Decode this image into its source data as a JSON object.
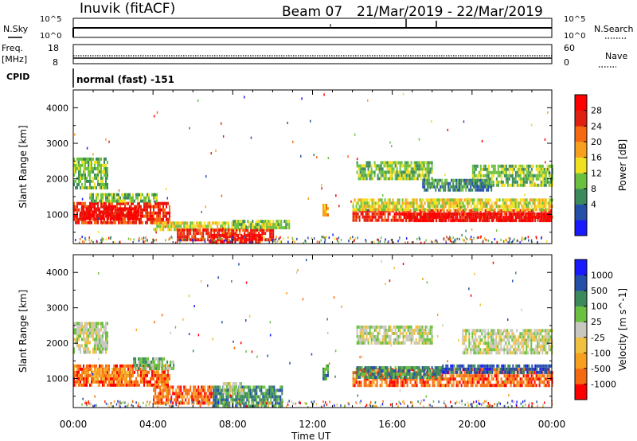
{
  "header": {
    "radar_title": "Inuvik (fitACF)",
    "beam_label": "Beam 07",
    "date_range": "21/Mar/2019 - 22/Mar/2019"
  },
  "strips": {
    "nsky_label": "N.Sky",
    "nsky_ticks": [
      "10^5",
      "10^0"
    ],
    "nsearch_label": "N.Search",
    "nsearch_ticks": [
      "10^5",
      "10^0"
    ],
    "freq_label": "Freq.",
    "freq_unit": "[MHz]",
    "freq_ticks": [
      "18",
      "8"
    ],
    "nave_label": "Nave",
    "nave_ticks": [
      "60",
      "0"
    ],
    "cpid_label": "CPID",
    "cpid_value": "normal (fast) -151"
  },
  "chart_data": [
    {
      "type": "heatmap",
      "name": "power",
      "ylabel": "Slant Range [km]",
      "xlabel": "Time UT",
      "x_ticks": [
        "00:00",
        "04:00",
        "08:00",
        "12:00",
        "16:00",
        "20:00",
        "00:00"
      ],
      "y_ticks": [
        1000,
        2000,
        3000,
        4000
      ],
      "ylim": [
        180,
        4500
      ],
      "xlim_hours": [
        0,
        24
      ],
      "colorbar": {
        "label": "Power [dB]",
        "ticks": [
          "28",
          "24",
          "20",
          "16",
          "12",
          "8",
          "4"
        ],
        "colors": [
          "#1a1aff",
          "#2550a8",
          "#3c8a5c",
          "#6cc040",
          "#f0e020",
          "#f7a020",
          "#f56a10",
          "#e02010",
          "#ff0000"
        ]
      },
      "regions": [
        {
          "t0": 0.0,
          "t1": 1.7,
          "r0": 1750,
          "r1": 2600,
          "level": 3
        },
        {
          "t0": 0.0,
          "t1": 4.8,
          "r0": 800,
          "r1": 1350,
          "level": 7
        },
        {
          "t0": 0.3,
          "t1": 3.3,
          "r0": 850,
          "r1": 1200,
          "level": 8
        },
        {
          "t0": 0.8,
          "t1": 4.2,
          "r0": 1350,
          "r1": 1600,
          "level": 3
        },
        {
          "t0": 4.0,
          "t1": 10.0,
          "r0": 600,
          "r1": 800,
          "level": 4
        },
        {
          "t0": 5.2,
          "t1": 10.0,
          "r0": 300,
          "r1": 600,
          "level": 7
        },
        {
          "t0": 6.8,
          "t1": 9.5,
          "r0": 250,
          "r1": 450,
          "level": 8
        },
        {
          "t0": 8.0,
          "t1": 10.8,
          "r0": 650,
          "r1": 850,
          "level": 3
        },
        {
          "t0": 14.0,
          "t1": 24.0,
          "r0": 800,
          "r1": 1150,
          "level": 7
        },
        {
          "t0": 16.5,
          "t1": 24.0,
          "r0": 850,
          "r1": 1050,
          "level": 8
        },
        {
          "t0": 14.0,
          "t1": 24.0,
          "r0": 1150,
          "r1": 1450,
          "level": 4
        },
        {
          "t0": 14.2,
          "t1": 18.0,
          "r0": 2000,
          "r1": 2500,
          "level": 3
        },
        {
          "t0": 20.0,
          "t1": 24.0,
          "r0": 1800,
          "r1": 2400,
          "level": 3
        },
        {
          "t0": 17.5,
          "t1": 21.0,
          "r0": 1700,
          "r1": 2000,
          "level": 2
        },
        {
          "t0": 12.5,
          "t1": 12.8,
          "r0": 1000,
          "r1": 1300,
          "level": 5
        }
      ]
    },
    {
      "type": "heatmap",
      "name": "velocity",
      "ylabel": "Slant Range [km]",
      "xlabel": "Time UT",
      "x_ticks": [
        "00:00",
        "04:00",
        "08:00",
        "12:00",
        "16:00",
        "20:00",
        "00:00"
      ],
      "y_ticks": [
        1000,
        2000,
        3000,
        4000
      ],
      "ylim": [
        180,
        4500
      ],
      "xlim_hours": [
        0,
        24
      ],
      "colorbar": {
        "label": "Velocity [m s^-1]",
        "ticks": [
          "1000",
          "500",
          "100",
          "25",
          "-25",
          "-100",
          "-500",
          "-1000"
        ],
        "colors": [
          "#ff0000",
          "#f56a10",
          "#f7a020",
          "#f0c040",
          "#c8c8c0",
          "#6cc040",
          "#3c8a5c",
          "#2550a8",
          "#1a1aff"
        ]
      },
      "regions": [
        {
          "t0": 0.0,
          "t1": 1.7,
          "r0": 1750,
          "r1": 2600,
          "level": 4
        },
        {
          "t0": 0.0,
          "t1": 4.8,
          "r0": 800,
          "r1": 1400,
          "level": 1
        },
        {
          "t0": 0.4,
          "t1": 3.0,
          "r0": 1000,
          "r1": 1300,
          "level": 2
        },
        {
          "t0": 3.0,
          "t1": 5.0,
          "r0": 1300,
          "r1": 1600,
          "level": 5
        },
        {
          "t0": 4.0,
          "t1": 7.0,
          "r0": 300,
          "r1": 800,
          "level": 1
        },
        {
          "t0": 7.0,
          "t1": 10.5,
          "r0": 250,
          "r1": 800,
          "level": 6
        },
        {
          "t0": 7.5,
          "t1": 8.5,
          "r0": 600,
          "r1": 900,
          "level": 4
        },
        {
          "t0": 14.0,
          "t1": 24.0,
          "r0": 800,
          "r1": 1300,
          "level": 1
        },
        {
          "t0": 14.2,
          "t1": 18.5,
          "r0": 1000,
          "r1": 1350,
          "level": 6
        },
        {
          "t0": 18.5,
          "t1": 24.0,
          "r0": 1150,
          "r1": 1400,
          "level": 7
        },
        {
          "t0": 14.2,
          "t1": 18.0,
          "r0": 2000,
          "r1": 2500,
          "level": 4
        },
        {
          "t0": 19.5,
          "t1": 24.0,
          "r0": 1700,
          "r1": 2400,
          "level": 4
        },
        {
          "t0": 12.5,
          "t1": 12.8,
          "r0": 1000,
          "r1": 1400,
          "level": 6
        }
      ]
    }
  ]
}
